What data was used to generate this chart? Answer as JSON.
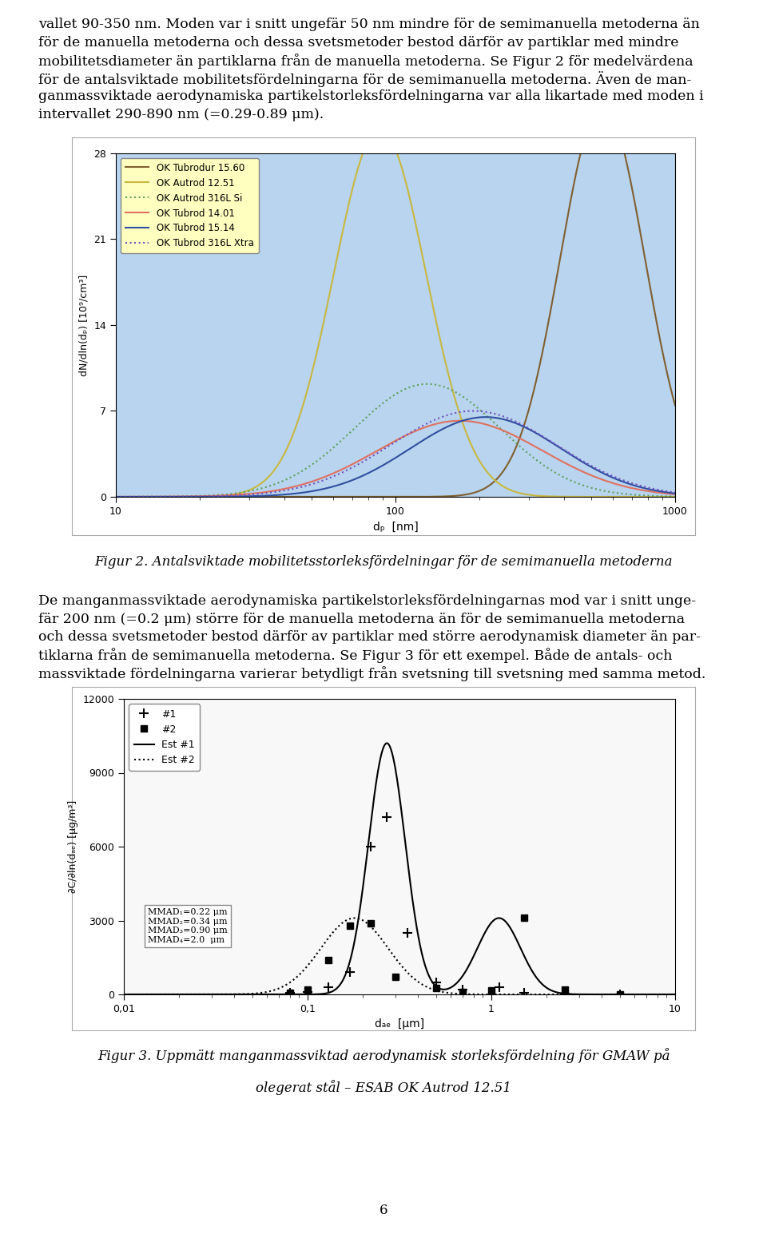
{
  "text_intro_lines": [
    "vallet 90-350 nm. Moden var i snitt ungefär 50 nm mindre för de semimanuella metoderna än",
    "för de manuella metoderna och dessa svetsmetoder bestod därför av partiklar med mindre",
    "mobilitetsdiameter än partiklarna från de manuella metoderna. Se Figur 2 för medelvärdena",
    "för de antalsviktade mobilitetsfördelningarna för de semimanuella metoderna. Även de man-",
    "ganmassviktade aerodynamiska partikelstorleksfördelningarna var alla likartade med moden i",
    "intervallet 290-890 nm (=0.29-0.89 μm)."
  ],
  "fig2_caption": "Figur 2. Antalsviktade mobilitetsstorleksfördelningar för de semimanuella metoderna",
  "fig2_ylabel": "dN/dln(dₚ) [10⁹/cm³]",
  "fig2_xlabel": "dₚ  [nm]",
  "fig2_yticks": [
    0,
    7,
    14,
    21,
    28
  ],
  "fig2_xlim": [
    10,
    1000
  ],
  "fig2_ylim": [
    0,
    28
  ],
  "fig2_bg": "#b8d4ee",
  "fig2_legend": [
    {
      "label": "OK Autrod 12.51",
      "color": "#c8b840",
      "style": "solid"
    },
    {
      "label": "OK Autrod 316L Si",
      "color": "#60a060",
      "style": "dotted"
    },
    {
      "label": "OK Tubrod 14.01",
      "color": "#e07060",
      "style": "solid"
    },
    {
      "label": "OK Tubrod 15.14",
      "color": "#3050a0",
      "style": "solid"
    },
    {
      "label": "OK Tubrod 316L Xtra",
      "color": "#7050c0",
      "style": "dotted"
    },
    {
      "label": "OK Tubrodur 15.60",
      "color": "#806030",
      "style": "solid"
    }
  ],
  "text_between_lines": [
    "De manganmassviktade aerodynamiska partikelstorleksfördelningarnas mod var i snitt unge-",
    "fär 200 nm (=0.2 μm) större för de manuella metoderna än för de semimanuella metoderna",
    "och dessa svetsmetoder bestod därför av partiklar med större aerodynamisk diameter än par-",
    "tiklarna från de semimanuella metoderna. Se Figur 3 för ett exempel. Både de antals- och",
    "massviktade fördelningarna varierar betydligt från svetsning till svetsning med samma metod."
  ],
  "fig3_caption_line1": "Figur 3. Uppmätt manganmassviktad aerodynamisk storleksfördelning för GMAW på",
  "fig3_caption_line2": "olegerat stål – ESAB OK Autrod 12.51",
  "fig3_ylabel": "∂C/∂ln(dₐₑ) [μg/m³]",
  "fig3_xlabel": "dₐₑ  [μm]",
  "fig3_yticks": [
    0,
    3000,
    6000,
    9000,
    12000
  ],
  "fig3_xlim": [
    0.01,
    10
  ],
  "fig3_ylim": [
    0,
    12000
  ],
  "fig3_bg": "#f8f8f8",
  "fig3_mmad_text": "MMAD₁=0.22 μm\nMMAD₂=0.34 μm\nMMAD₃=0.90 μm\nMMAD₄=2.0  μm",
  "page_number": "6",
  "body_fontsize": 12.5,
  "caption_fontsize": 12,
  "bg_page": "#ffffff"
}
